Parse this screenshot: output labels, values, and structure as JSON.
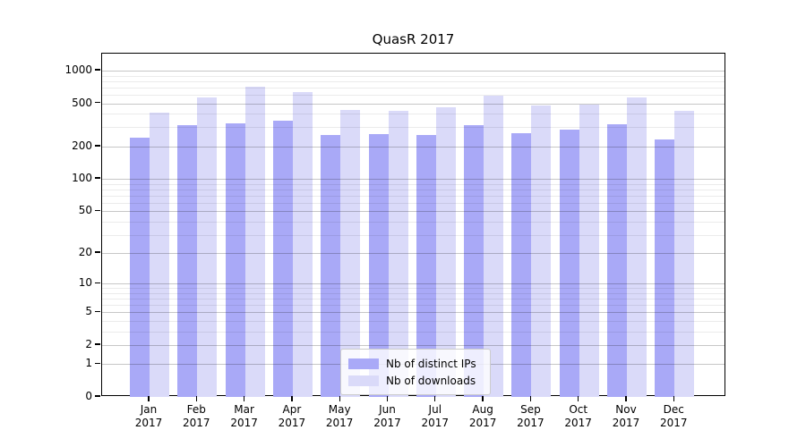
{
  "title": "QuasR 2017",
  "chart_data": {
    "type": "bar",
    "title": "QuasR 2017",
    "yscale": "log1p",
    "grid": "major+minor",
    "legend_position": "lower center (inside plot)",
    "year_label": "2017",
    "categories": [
      "Jan",
      "Feb",
      "Mar",
      "Apr",
      "May",
      "Jun",
      "Jul",
      "Aug",
      "Sep",
      "Oct",
      "Nov",
      "Dec"
    ],
    "series": [
      {
        "key": "distinct-ips",
        "name": "Nb of distinct IPs",
        "color": "#a9a9f7",
        "values": [
          240,
          315,
          325,
          345,
          255,
          260,
          255,
          315,
          265,
          285,
          320,
          230
        ]
      },
      {
        "key": "downloads",
        "name": "Nb of downloads",
        "color": "#dadaf9",
        "values": [
          410,
          570,
          715,
          630,
          435,
          430,
          460,
          590,
          480,
          490,
          570,
          430
        ]
      }
    ],
    "yticks": [
      0,
      1,
      2,
      5,
      10,
      20,
      50,
      100,
      200,
      500,
      1000
    ],
    "minor_grid_values": [
      3,
      4,
      6,
      7,
      8,
      9,
      30,
      40,
      60,
      70,
      80,
      90,
      300,
      400,
      600,
      700,
      800,
      900
    ],
    "ylim": [
      0,
      1430
    ]
  }
}
